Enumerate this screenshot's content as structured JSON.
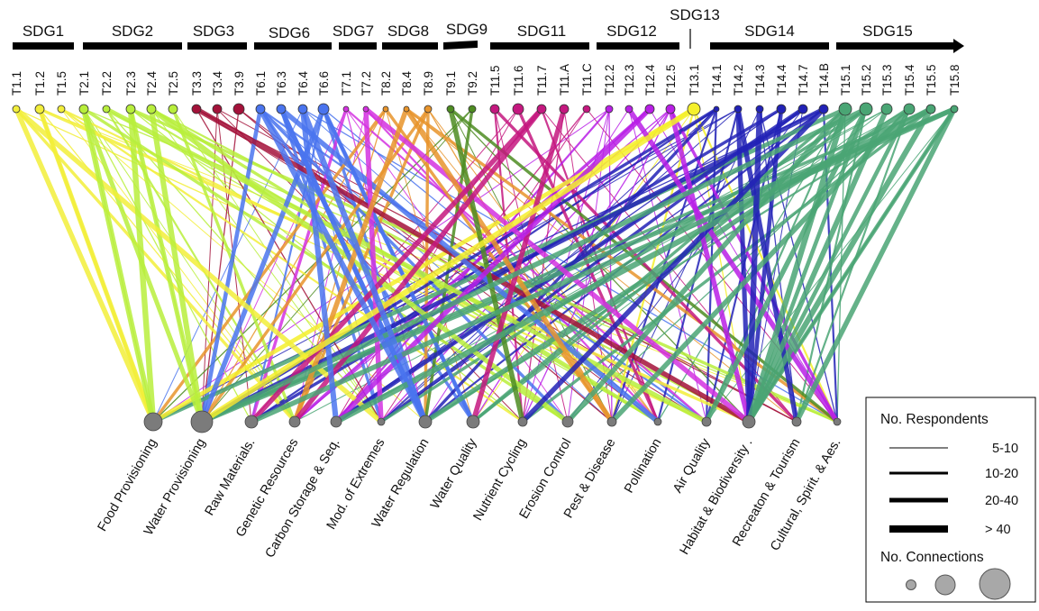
{
  "sdg_groups": [
    {
      "name": "SDG1"
    },
    {
      "name": "SDG2"
    },
    {
      "name": "SDG3"
    },
    {
      "name": "SDG6"
    },
    {
      "name": "SDG7"
    },
    {
      "name": "SDG8"
    },
    {
      "name": "SDG9"
    },
    {
      "name": "SDG11"
    },
    {
      "name": "SDG12"
    },
    {
      "name": "SDG13"
    },
    {
      "name": "SDG14"
    },
    {
      "name": "SDG15"
    }
  ],
  "targets": [
    {
      "label": "T1.1",
      "sdg": "SDG1",
      "color": "#f2ee3a"
    },
    {
      "label": "T1.2",
      "sdg": "SDG1",
      "color": "#f2ee3a"
    },
    {
      "label": "T1.5",
      "sdg": "SDG1",
      "color": "#f2ee3a"
    },
    {
      "label": "T2.1",
      "sdg": "SDG2",
      "color": "#b8ee3c"
    },
    {
      "label": "T2.2",
      "sdg": "SDG2",
      "color": "#b8ee3c"
    },
    {
      "label": "T2.3",
      "sdg": "SDG2",
      "color": "#b8ee3c"
    },
    {
      "label": "T2.4",
      "sdg": "SDG2",
      "color": "#b8ee3c"
    },
    {
      "label": "T2.5",
      "sdg": "SDG2",
      "color": "#b8ee3c"
    },
    {
      "label": "T3.3",
      "sdg": "SDG3",
      "color": "#a3123a"
    },
    {
      "label": "T3.4",
      "sdg": "SDG3",
      "color": "#a3123a"
    },
    {
      "label": "T3.9",
      "sdg": "SDG3",
      "color": "#a3123a"
    },
    {
      "label": "T6.1",
      "sdg": "SDG6",
      "color": "#4a74ee"
    },
    {
      "label": "T6.3",
      "sdg": "SDG6",
      "color": "#4a74ee"
    },
    {
      "label": "T6.4",
      "sdg": "SDG6",
      "color": "#4a74ee"
    },
    {
      "label": "T6.6",
      "sdg": "SDG6",
      "color": "#4a74ee"
    },
    {
      "label": "T7.1",
      "sdg": "SDG7",
      "color": "#d431e0"
    },
    {
      "label": "T7.2",
      "sdg": "SDG7",
      "color": "#d431e0"
    },
    {
      "label": "T8.2",
      "sdg": "SDG8",
      "color": "#e8942c"
    },
    {
      "label": "T8.4",
      "sdg": "SDG8",
      "color": "#e8942c"
    },
    {
      "label": "T8.9",
      "sdg": "SDG8",
      "color": "#e8942c"
    },
    {
      "label": "T9.1",
      "sdg": "SDG9",
      "color": "#4e8c22"
    },
    {
      "label": "T9.2",
      "sdg": "SDG9",
      "color": "#4e8c22"
    },
    {
      "label": "T11.5",
      "sdg": "SDG11",
      "color": "#c4187f"
    },
    {
      "label": "T11.6",
      "sdg": "SDG11",
      "color": "#c4187f"
    },
    {
      "label": "T11.7",
      "sdg": "SDG11",
      "color": "#c4187f"
    },
    {
      "label": "T11.A",
      "sdg": "SDG11",
      "color": "#c4187f"
    },
    {
      "label": "T11.C",
      "sdg": "SDG11",
      "color": "#c4187f"
    },
    {
      "label": "T12.2",
      "sdg": "SDG12",
      "color": "#b81fe6"
    },
    {
      "label": "T12.3",
      "sdg": "SDG12",
      "color": "#b81fe6"
    },
    {
      "label": "T12.4",
      "sdg": "SDG12",
      "color": "#b81fe6"
    },
    {
      "label": "T12.5",
      "sdg": "SDG12",
      "color": "#b81fe6"
    },
    {
      "label": "T13.1",
      "sdg": "SDG13",
      "color": "#f5f02c"
    },
    {
      "label": "T14.1",
      "sdg": "SDG14",
      "color": "#2222b6"
    },
    {
      "label": "T14.2",
      "sdg": "SDG14",
      "color": "#2222b6"
    },
    {
      "label": "T14.3",
      "sdg": "SDG14",
      "color": "#2222b6"
    },
    {
      "label": "T14.4",
      "sdg": "SDG14",
      "color": "#2222b6"
    },
    {
      "label": "T14.7",
      "sdg": "SDG14",
      "color": "#2222b6"
    },
    {
      "label": "T14.B",
      "sdg": "SDG14",
      "color": "#2222b6"
    },
    {
      "label": "T15.1",
      "sdg": "SDG15",
      "color": "#4aa574"
    },
    {
      "label": "T15.2",
      "sdg": "SDG15",
      "color": "#4aa574"
    },
    {
      "label": "T15.3",
      "sdg": "SDG15",
      "color": "#4aa574"
    },
    {
      "label": "T15.4",
      "sdg": "SDG15",
      "color": "#4aa574"
    },
    {
      "label": "T15.5",
      "sdg": "SDG15",
      "color": "#4aa574"
    },
    {
      "label": "T15.8",
      "sdg": "SDG15",
      "color": "#4aa574"
    }
  ],
  "ecosystem_services": [
    {
      "label": "Food Provisioning"
    },
    {
      "label": "Water Provisioning"
    },
    {
      "label": "Raw Materials."
    },
    {
      "label": "Genetic Resources"
    },
    {
      "label": "Carbon Storage & Seq."
    },
    {
      "label": "Mod. of Extremes"
    },
    {
      "label": "Water Regulation"
    },
    {
      "label": "Water Quality"
    },
    {
      "label": "Nutrient Cycling"
    },
    {
      "label": "Erosion Control"
    },
    {
      "label": "Pest & Disease"
    },
    {
      "label": "Pollination"
    },
    {
      "label": "Air Quality"
    },
    {
      "label": "Habitat & Biodiversity ."
    },
    {
      "label": "Recreaton & Tourism"
    },
    {
      "label": "Cultural, Spirit. & Aes."
    }
  ],
  "legend": {
    "respondents_title": "No. Respondents",
    "respondent_bins": [
      "5-10",
      "10-20",
      "20-40",
      "> 40"
    ],
    "connections_title": "No. Connections"
  },
  "colors": {
    "node_gray": "#7b7b7b",
    "bar": "#000000"
  }
}
